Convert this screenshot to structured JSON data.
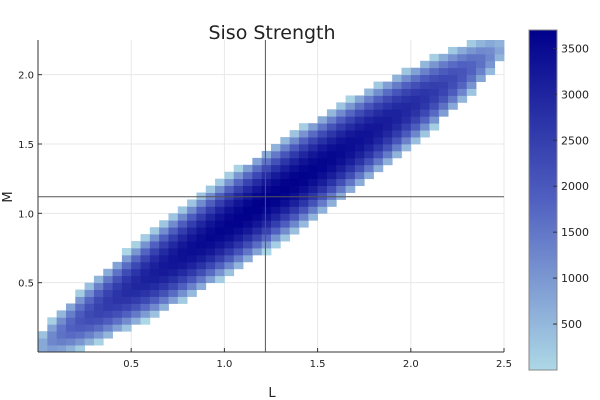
{
  "chart_data": {
    "type": "heatmap",
    "title": "Siso Strength",
    "xlabel": "L",
    "ylabel": "M",
    "xlim": [
      0.0,
      2.5
    ],
    "ylim": [
      0.0,
      2.25
    ],
    "x_ticks": [
      "0.5",
      "1.0",
      "1.5",
      "2.0",
      "2.5"
    ],
    "y_ticks": [
      "0.5",
      "1.0",
      "1.5",
      "2.0"
    ],
    "colorbar": {
      "min": 0,
      "max": 3700,
      "ticks": [
        "500",
        "1000",
        "1500",
        "2000",
        "2500",
        "3000",
        "3500"
      ],
      "low_color": "#add8e6",
      "high_color": "#00008b"
    },
    "grid": true,
    "crosshair": {
      "x": 1.22,
      "y": 1.12
    },
    "band": {
      "start": [
        0.0,
        0.03
      ],
      "end": [
        2.5,
        2.2
      ],
      "halfwidth_near_center": 0.32,
      "peak_value": 3700
    }
  }
}
